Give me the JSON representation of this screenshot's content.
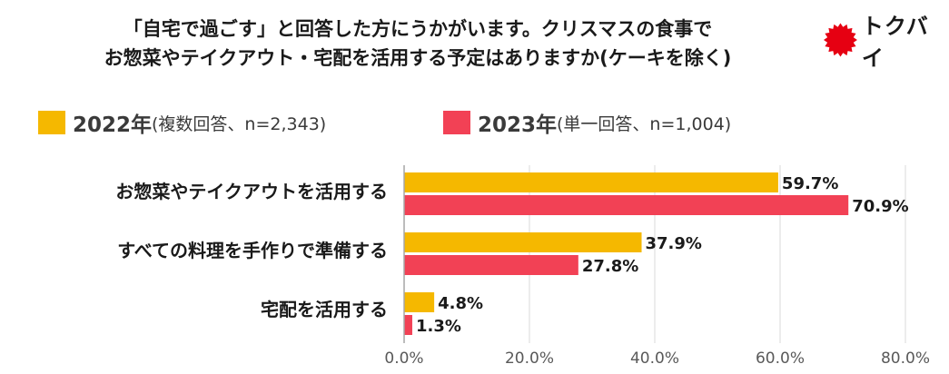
{
  "title": {
    "line1": "「自宅で過ごす」と回答した方にうかがいます。クリスマスの食事で",
    "line2": "お惣菜やテイクアウト・宅配を活用する予定はありますか(ケーキを除く)"
  },
  "logo": {
    "text": "トクバイ",
    "color": "#e60012"
  },
  "colors": {
    "series2022": "#f5b800",
    "series2023": "#f24155"
  },
  "legend": [
    {
      "year": "2022年",
      "note": "(複数回答、n=2,343)"
    },
    {
      "year": "2023年",
      "note": "(単一回答、n=1,004)"
    }
  ],
  "chart_data": {
    "type": "bar",
    "orientation": "horizontal",
    "categories": [
      "お惣菜やテイクアウトを活用する",
      "すべての料理を手作りで準備する",
      "宅配を活用する"
    ],
    "series": [
      {
        "name": "2022年(複数回答、n=2,343)",
        "values": [
          59.7,
          37.9,
          4.8
        ],
        "labels": [
          "59.7%",
          "37.9%",
          "4.8%"
        ]
      },
      {
        "name": "2023年(単一回答、n=1,004)",
        "values": [
          70.9,
          27.8,
          1.3
        ],
        "labels": [
          "70.9%",
          "27.8%",
          "1.3%"
        ]
      }
    ],
    "xlim": [
      0,
      80
    ],
    "xticks": [
      "0.0%",
      "20.0%",
      "40.0%",
      "60.0%",
      "80.0%"
    ],
    "grid": true,
    "legend": "top-left"
  }
}
